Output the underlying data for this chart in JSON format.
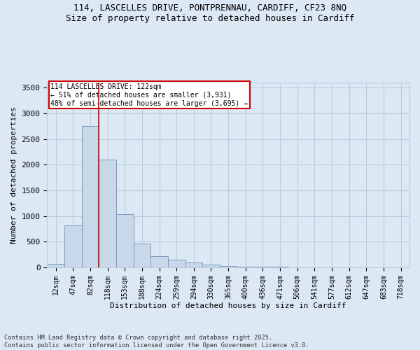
{
  "title_line1": "114, LASCELLES DRIVE, PONTPRENNAU, CARDIFF, CF23 8NQ",
  "title_line2": "Size of property relative to detached houses in Cardiff",
  "xlabel": "Distribution of detached houses by size in Cardiff",
  "ylabel": "Number of detached properties",
  "footnote": "Contains HM Land Registry data © Crown copyright and database right 2025.\nContains public sector information licensed under the Open Government Licence v3.0.",
  "bin_labels": [
    "12sqm",
    "47sqm",
    "82sqm",
    "118sqm",
    "153sqm",
    "188sqm",
    "224sqm",
    "259sqm",
    "294sqm",
    "330sqm",
    "365sqm",
    "400sqm",
    "436sqm",
    "471sqm",
    "506sqm",
    "541sqm",
    "577sqm",
    "612sqm",
    "647sqm",
    "683sqm",
    "718sqm"
  ],
  "bar_values": [
    70,
    820,
    2750,
    2100,
    1030,
    460,
    220,
    150,
    90,
    55,
    30,
    20,
    12,
    8,
    5,
    3,
    2,
    1,
    1,
    0,
    0
  ],
  "bar_color": "#c8d8e8",
  "bar_edgecolor": "#7a9abf",
  "bar_linewidth": 0.7,
  "grid_color": "#b8cde0",
  "bg_color": "#dce8f4",
  "property_line_x": 2.5,
  "property_line_color": "#cc0000",
  "annotation_title": "114 LASCELLES DRIVE: 122sqm",
  "annotation_line1": "← 51% of detached houses are smaller (3,931)",
  "annotation_line2": "48% of semi-detached houses are larger (3,695) →",
  "annotation_box_color": "#ffffff",
  "annotation_box_edgecolor": "#cc0000",
  "ylim": [
    0,
    3600
  ],
  "yticks": [
    0,
    500,
    1000,
    1500,
    2000,
    2500,
    3000,
    3500
  ]
}
